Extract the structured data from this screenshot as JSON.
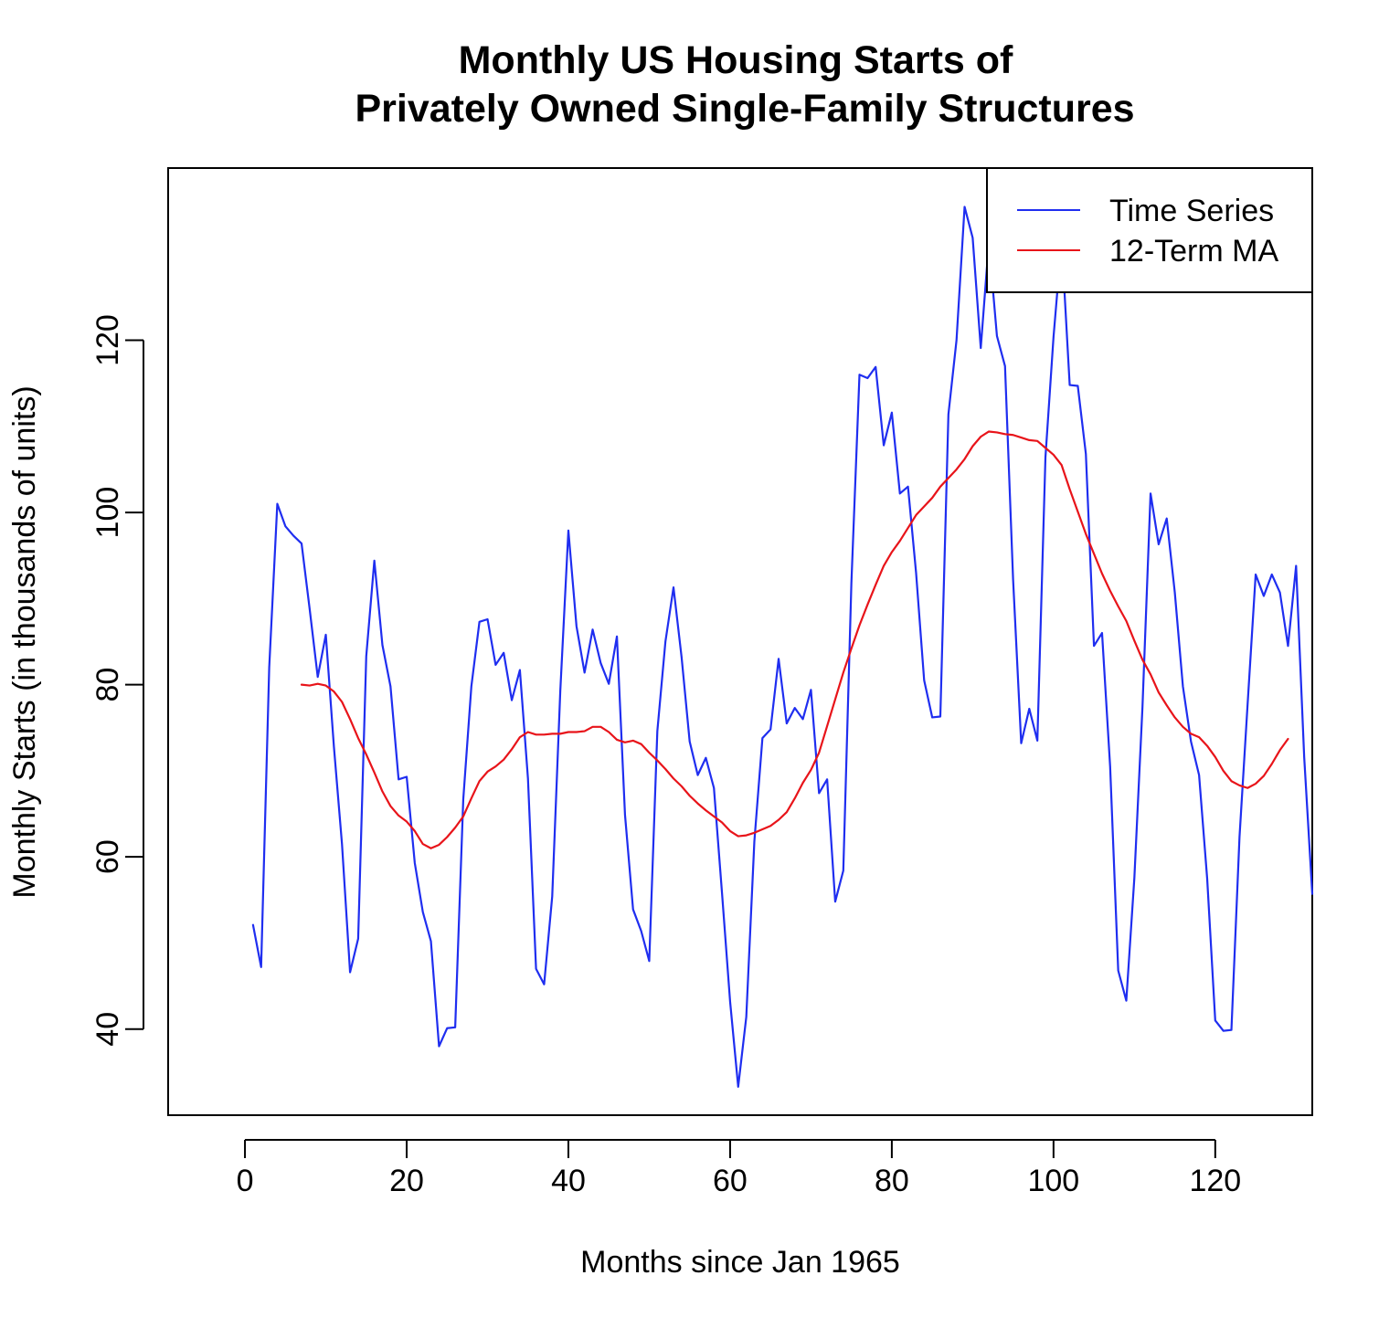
{
  "chart_data": {
    "type": "line",
    "title": "Monthly US Housing Starts of",
    "subtitle": "Privately Owned Single-Family Structures",
    "xlabel": "Months since Jan 1965",
    "ylabel": "Monthly Starts (in thousands of units)",
    "xlim": [
      -9.5,
      132
    ],
    "ylim": [
      30,
      140
    ],
    "x_ticks": [
      0,
      20,
      40,
      60,
      80,
      100,
      120
    ],
    "x_tick_labels": [
      "0",
      "20",
      "40",
      "60",
      "80",
      "100",
      "120"
    ],
    "y_ticks": [
      40,
      60,
      80,
      100,
      120
    ],
    "y_tick_labels": [
      "40",
      "60",
      "80",
      "100",
      "120"
    ],
    "grid": false,
    "legend_position": "top-right",
    "series": [
      {
        "name": "Time Series",
        "color": "#1F2EF0",
        "x_start": 1,
        "values": [
          52.1,
          47.2,
          82.0,
          101.0,
          98.4,
          97.3,
          96.4,
          88.8,
          80.9,
          85.8,
          72.8,
          61.5,
          46.6,
          50.5,
          83.3,
          94.4,
          84.6,
          79.8,
          69.0,
          69.3,
          59.3,
          53.6,
          50.2,
          38.0,
          40.1,
          40.2,
          66.7,
          79.8,
          87.3,
          87.6,
          82.3,
          83.7,
          78.2,
          81.7,
          69.1,
          47.0,
          45.2,
          55.4,
          79.3,
          97.9,
          86.8,
          81.4,
          86.4,
          82.5,
          80.1,
          85.6,
          64.9,
          53.9,
          51.4,
          47.9,
          74.6,
          85.0,
          91.3,
          83.2,
          73.4,
          69.5,
          71.5,
          68.0,
          55.8,
          43.2,
          33.3,
          41.4,
          61.8,
          73.8,
          74.8,
          83.0,
          75.5,
          77.3,
          76.0,
          79.4,
          67.4,
          69.0,
          54.8,
          58.4,
          91.8,
          116.0,
          115.6,
          116.9,
          107.8,
          111.6,
          102.2,
          103.0,
          93.0,
          80.5,
          76.2,
          76.3,
          111.4,
          120.0,
          135.5,
          131.9,
          119.1,
          131.4,
          120.5,
          117.0,
          92.2,
          73.2,
          77.2,
          73.5,
          106.4,
          120.4,
          131.6,
          114.8,
          114.7,
          106.8,
          84.5,
          86.0,
          70.5,
          46.8,
          43.3,
          57.6,
          77.4,
          102.2,
          96.3,
          99.3,
          90.7,
          79.8,
          73.4,
          69.5,
          57.5,
          41.0,
          39.8,
          39.9,
          62.3,
          77.7,
          92.8,
          90.3,
          92.8,
          90.7,
          84.5,
          93.8,
          71.6,
          55.7
        ]
      },
      {
        "name": "12-Term MA",
        "color": "#E8141A",
        "x_start": 7,
        "values": [
          80.0,
          79.9,
          80.1,
          79.9,
          79.2,
          78.0,
          76.0,
          73.8,
          71.9,
          69.8,
          67.6,
          65.9,
          64.8,
          64.1,
          63.0,
          61.5,
          61.0,
          61.4,
          62.3,
          63.4,
          64.7,
          66.8,
          68.8,
          69.9,
          70.5,
          71.3,
          72.5,
          73.9,
          74.5,
          74.2,
          74.2,
          74.3,
          74.3,
          74.5,
          74.5,
          74.6,
          75.1,
          75.1,
          74.5,
          73.6,
          73.3,
          73.5,
          73.1,
          72.1,
          71.2,
          70.2,
          69.1,
          68.2,
          67.1,
          66.2,
          65.4,
          64.7,
          64.0,
          63.0,
          62.4,
          62.5,
          62.8,
          63.2,
          63.6,
          64.3,
          65.2,
          66.8,
          68.6,
          70.1,
          72.1,
          75.2,
          78.3,
          81.4,
          84.2,
          86.9,
          89.3,
          91.6,
          93.8,
          95.4,
          96.7,
          98.2,
          99.7,
          100.7,
          101.7,
          103.0,
          104.0,
          105.0,
          106.2,
          107.7,
          108.8,
          109.4,
          109.3,
          109.1,
          109.0,
          108.7,
          108.4,
          108.3,
          107.5,
          106.7,
          105.5,
          102.7,
          100.1,
          97.5,
          95.2,
          92.9,
          90.9,
          89.1,
          87.4,
          85.1,
          82.9,
          81.2,
          79.1,
          77.6,
          76.2,
          75.1,
          74.3,
          73.9,
          72.9,
          71.6,
          70.0,
          68.8,
          68.3,
          68.0,
          68.5,
          69.4,
          70.8,
          72.4,
          73.7
        ]
      }
    ]
  }
}
